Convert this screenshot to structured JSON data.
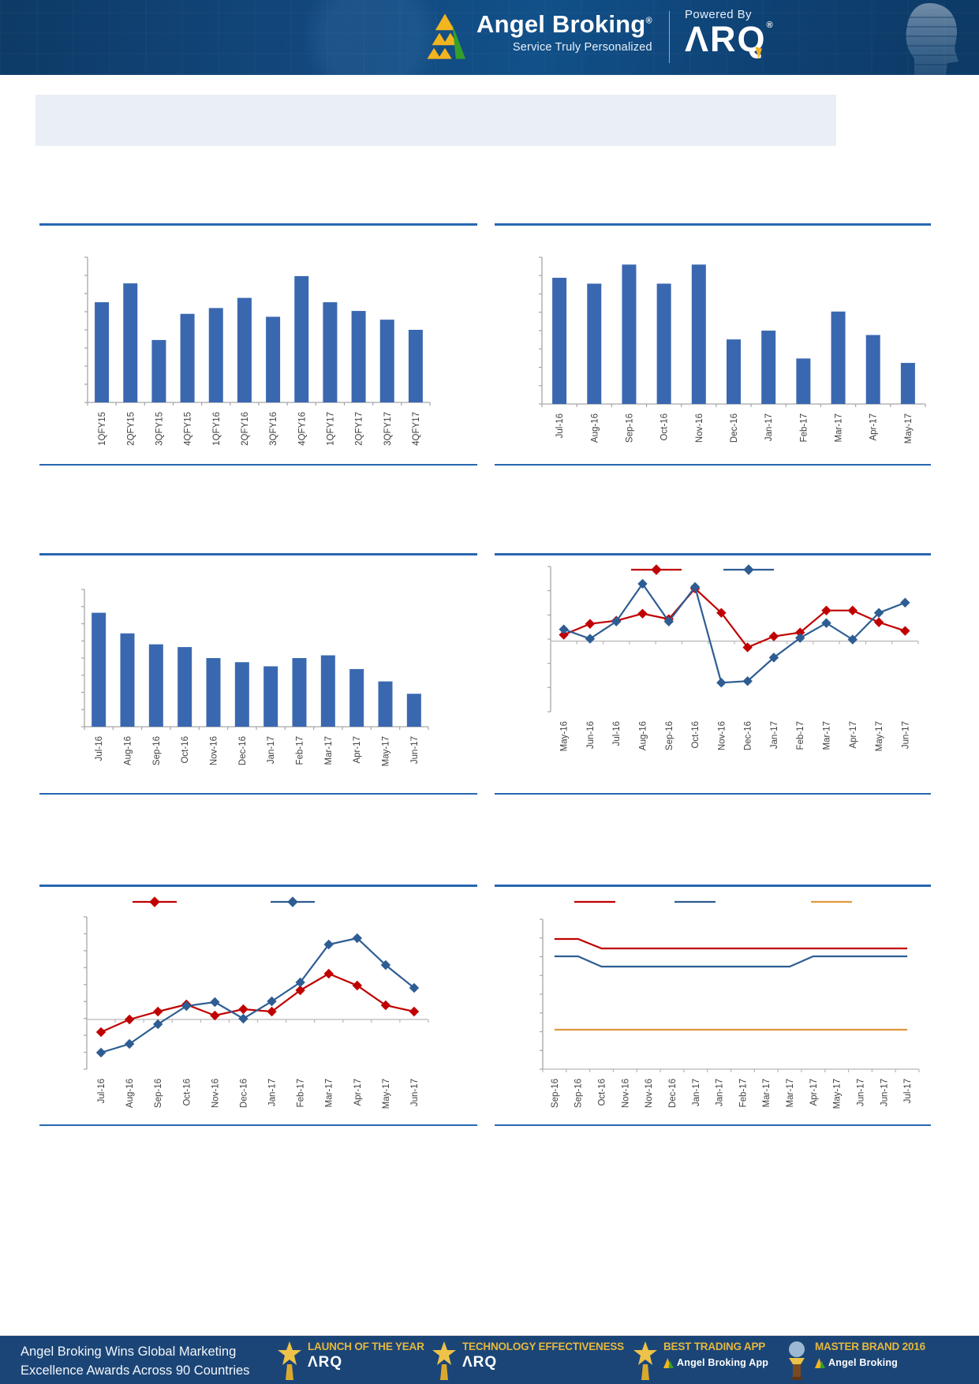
{
  "header": {
    "brand": "Angel Broking",
    "brand_reg": "®",
    "tagline": "Service Truly Personalized",
    "powered_by": "Powered By",
    "product": "ΛRQ",
    "product_reg": "®"
  },
  "colors": {
    "bar_blue": "#3A68B0",
    "line_red": "#C00000",
    "line_blue": "#2E5D93",
    "line_orange": "#E2973F",
    "rule_blue": "#2767B1",
    "header_navy": "#0F4373",
    "footer_navy": "#1B4577",
    "award_gold": "#E5B83E",
    "banner_gray_blue": "#E9EFF5"
  },
  "chart_data": [
    {
      "id": "q_bar",
      "type": "bar",
      "categories": [
        "1QFY15",
        "2QFY15",
        "3QFY15",
        "4QFY15",
        "1QFY16",
        "2QFY16",
        "3QFY16",
        "4QFY16",
        "1QFY17",
        "2QFY17",
        "3QFY17",
        "4QFY17"
      ],
      "values": [
        69,
        82,
        43,
        61,
        65,
        72,
        59,
        87,
        69,
        63,
        57,
        50
      ],
      "ylim": [
        0,
        100
      ],
      "bar_color": "#3A68B0",
      "axis_value_labels_visible": false,
      "grid": false
    },
    {
      "id": "m_bar1",
      "type": "bar",
      "categories": [
        "Jul-16",
        "Aug-16",
        "Sep-16",
        "Oct-16",
        "Nov-16",
        "Dec-16",
        "Jan-17",
        "Feb-17",
        "Mar-17",
        "Apr-17",
        "May-17"
      ],
      "values": [
        86,
        82,
        95,
        82,
        95,
        44,
        50,
        31,
        63,
        47,
        28
      ],
      "ylim": [
        0,
        100
      ],
      "bar_color": "#3A68B0",
      "axis_value_labels_visible": false,
      "grid": false
    },
    {
      "id": "m_bar2",
      "type": "bar",
      "categories": [
        "Jul-16",
        "Aug-16",
        "Sep-16",
        "Oct-16",
        "Nov-16",
        "Dec-16",
        "Jan-17",
        "Feb-17",
        "Mar-17",
        "Apr-17",
        "May-17",
        "Jun-17"
      ],
      "values": [
        83,
        68,
        60,
        58,
        50,
        47,
        44,
        50,
        52,
        42,
        33,
        24
      ],
      "ylim": [
        0,
        100
      ],
      "bar_color": "#3A68B0",
      "axis_value_labels_visible": false,
      "grid": false
    },
    {
      "id": "line1",
      "type": "line",
      "categories": [
        "May-16",
        "Jun-16",
        "Jul-16",
        "Aug-16",
        "Sep-16",
        "Oct-16",
        "Nov-16",
        "Dec-16",
        "Jan-17",
        "Feb-17",
        "Mar-17",
        "Apr-17",
        "May-17",
        "Jun-17"
      ],
      "ylim": [
        -90,
        95
      ],
      "legend_position": "top",
      "legend_labels": [
        "",
        ""
      ],
      "series": [
        {
          "color": "#C00000",
          "marker": "diamond",
          "values": [
            8,
            22,
            26,
            35,
            28,
            67,
            36,
            -8,
            6,
            11,
            39,
            39,
            24,
            13
          ]
        },
        {
          "color": "#2E5D93",
          "marker": "diamond",
          "values": [
            15,
            3,
            25,
            73,
            25,
            69,
            -53,
            -51,
            -21,
            4,
            23,
            2,
            36,
            49
          ]
        }
      ],
      "axis_value_labels_visible": false,
      "grid": false
    },
    {
      "id": "line2",
      "type": "line",
      "categories": [
        "Jul-16",
        "Aug-16",
        "Sep-16",
        "Oct-16",
        "Nov-16",
        "Dec-16",
        "Jan-17",
        "Feb-17",
        "Mar-17",
        "Apr-17",
        "May-17",
        "Jun-17"
      ],
      "ylim": [
        -63,
        130
      ],
      "legend_position": "top",
      "legend_labels": [
        "",
        ""
      ],
      "series": [
        {
          "color": "#C00000",
          "marker": "diamond",
          "values": [
            -16,
            0,
            10,
            19,
            5,
            13,
            10,
            37,
            58,
            43,
            18,
            10
          ]
        },
        {
          "color": "#2E5D93",
          "marker": "diamond",
          "values": [
            -42,
            -31,
            -6,
            17,
            22,
            1,
            23,
            47,
            95,
            103,
            69,
            40
          ]
        }
      ],
      "axis_value_labels_visible": false,
      "grid": false
    },
    {
      "id": "line3",
      "type": "line",
      "categories": [
        "Sep-16",
        "Sep-16",
        "Oct-16",
        "Nov-16",
        "Nov-16",
        "Dec-16",
        "Jan-17",
        "Jan-17",
        "Feb-17",
        "Mar-17",
        "Mar-17",
        "Apr-17",
        "May-17",
        "Jun-17",
        "Jun-17",
        "Jul-17"
      ],
      "ylim": [
        0,
        190
      ],
      "legend_position": "top",
      "legend_labels": [
        "",
        "",
        ""
      ],
      "series": [
        {
          "color": "#C00000",
          "marker": "none",
          "values": [
            165,
            165,
            153,
            153,
            153,
            153,
            153,
            153,
            153,
            153,
            153,
            153,
            153,
            153,
            153,
            153
          ]
        },
        {
          "color": "#2E5D93",
          "marker": "none",
          "values": [
            143,
            143,
            130,
            130,
            130,
            130,
            130,
            130,
            130,
            130,
            130,
            143,
            143,
            143,
            143,
            143
          ]
        },
        {
          "color": "#E2973F",
          "marker": "none",
          "values": [
            50,
            50,
            50,
            50,
            50,
            50,
            50,
            50,
            50,
            50,
            50,
            50,
            50,
            50,
            50,
            50
          ]
        }
      ],
      "axis_value_labels_visible": false,
      "grid": false
    }
  ],
  "footer": {
    "message_line1": "Angel Broking Wins Global Marketing",
    "message_line2": "Excellence Awards Across 90 Countries",
    "awards": [
      {
        "title": "LAUNCH OF THE YEAR",
        "subtitle": "ΛRQ"
      },
      {
        "title": "TECHNOLOGY EFFECTIVENESS",
        "subtitle": "ΛRQ"
      },
      {
        "title": "BEST TRADING APP",
        "subtitle": "Angel Broking App"
      },
      {
        "title": "MASTER BRAND 2016",
        "subtitle": "Angel Broking"
      }
    ]
  }
}
